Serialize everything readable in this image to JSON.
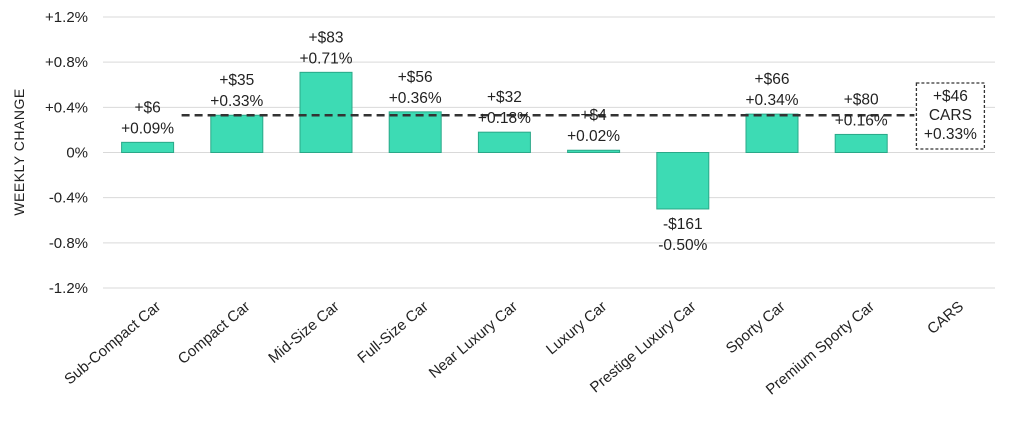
{
  "chart_data": {
    "type": "bar",
    "title": "",
    "xlabel": "",
    "ylabel": "WEEKLY CHANGE",
    "ylim": [
      -1.2,
      1.2
    ],
    "yticks": [
      1.2,
      0.8,
      0.4,
      0,
      -0.4,
      -0.8,
      -1.2
    ],
    "ytick_labels": [
      "+1.2%",
      "+0.8%",
      "+0.4%",
      "0%",
      "-0.4%",
      "-0.8%",
      "-1.2%"
    ],
    "grid": true,
    "categories": [
      "Sub-Compact Car",
      "Compact Car",
      "Mid-Size Car",
      "Full-Size Car",
      "Near Luxury Car",
      "Luxury Car",
      "Prestige Luxury Car",
      "Sporty Car",
      "Premium Sporty Car",
      "CARS"
    ],
    "values": [
      0.09,
      0.33,
      0.71,
      0.36,
      0.18,
      0.02,
      -0.5,
      0.34,
      0.16,
      null
    ],
    "dollar_labels": [
      "+$6",
      "+$35",
      "+$83",
      "+$56",
      "+$32",
      "+$4",
      "-$161",
      "+$66",
      "+$80",
      "+$46"
    ],
    "percent_labels": [
      "+0.09%",
      "+0.33%",
      "+0.71%",
      "+0.36%",
      "+0.18%",
      "+0.02%",
      "-0.50%",
      "+0.34%",
      "+0.16%",
      "+0.33%"
    ],
    "reference_line": {
      "value": 0.33,
      "style": "dashed",
      "dollar_label": "+$46",
      "name_label": "CARS",
      "percent_label": "+0.33%"
    },
    "colors": {
      "bar": "#3ddbb4",
      "bar_edge": "#2aa888",
      "grid": "#d9d9d9",
      "reference": "#333333"
    }
  }
}
